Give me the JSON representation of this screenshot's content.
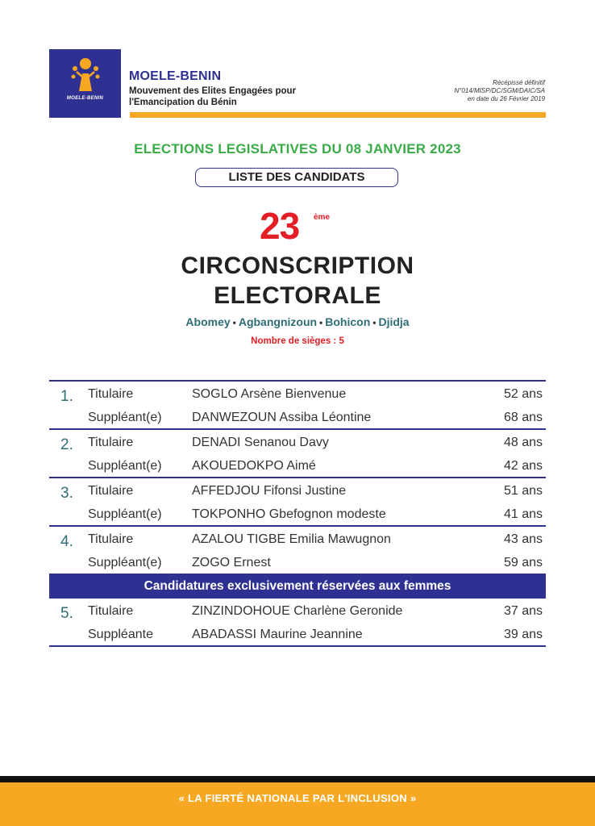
{
  "header": {
    "logo_caption": "MOELE-BENIN",
    "org_name": "MOELE-BENIN",
    "org_full_line1": "Mouvement des Elites Engagées pour",
    "org_full_line2": "l'Emancipation du Bénin",
    "receipt_line1": "Récépissé définitif",
    "receipt_line2": "N°014/MISP/DC/SGM/DAIC/SA",
    "receipt_line3": "en date du 26 Février 2019"
  },
  "election_title": "ELECTIONS LEGISLATIVES DU 08 JANVIER 2023",
  "list_label": "LISTE DES CANDIDATS",
  "circonscription": {
    "number": "23",
    "suffix": "ème",
    "line1": "CIRCONSCRIPTION",
    "line2": "ELECTORALE",
    "communes": [
      "Abomey",
      "Agbangnizoun",
      "Bohicon",
      "Djidja"
    ],
    "separator": "•",
    "seats": "Nombre de sièges : 5"
  },
  "candidates": [
    {
      "num": "1.",
      "titulaire": {
        "role": "Titulaire",
        "name": "SOGLO Arsène Bienvenue",
        "age": "52 ans"
      },
      "suppleant": {
        "role": "Suppléant(e)",
        "name": "DANWEZOUN Assiba Léontine",
        "age": "68 ans"
      }
    },
    {
      "num": "2.",
      "titulaire": {
        "role": "Titulaire",
        "name": "DENADI Senanou Davy",
        "age": "48 ans"
      },
      "suppleant": {
        "role": "Suppléant(e)",
        "name": "AKOUEDOKPO Aimé",
        "age": "42 ans"
      }
    },
    {
      "num": "3.",
      "titulaire": {
        "role": "Titulaire",
        "name": "AFFEDJOU Fifonsi Justine",
        "age": "51 ans"
      },
      "suppleant": {
        "role": "Suppléant(e)",
        "name": "TOKPONHO Gbefognon modeste",
        "age": "41 ans"
      }
    },
    {
      "num": "4.",
      "titulaire": {
        "role": "Titulaire",
        "name": "AZALOU TIGBE Emilia Mawugnon",
        "age": "43 ans"
      },
      "suppleant": {
        "role": "Suppléant(e)",
        "name": "ZOGO Ernest",
        "age": "59 ans"
      }
    }
  ],
  "women_section_title": "Candidatures exclusivement réservées aux femmes",
  "women_candidate": {
    "num": "5.",
    "titulaire": {
      "role": "Titulaire",
      "name": "ZINZINDOHOUE Charlène Geronide",
      "age": "37 ans"
    },
    "suppleant": {
      "role": "Suppléante",
      "name": "ABADASSI Maurine Jeannine",
      "age": "39 ans"
    }
  },
  "footer_slogan": "« LA FIERTÉ NATIONALE PAR L'INCLUSION »",
  "colors": {
    "brand_blue": "#2e3192",
    "accent_orange": "#f7a823",
    "title_green": "#3aab47",
    "red": "#e31e24",
    "teal": "#2f6d77"
  }
}
